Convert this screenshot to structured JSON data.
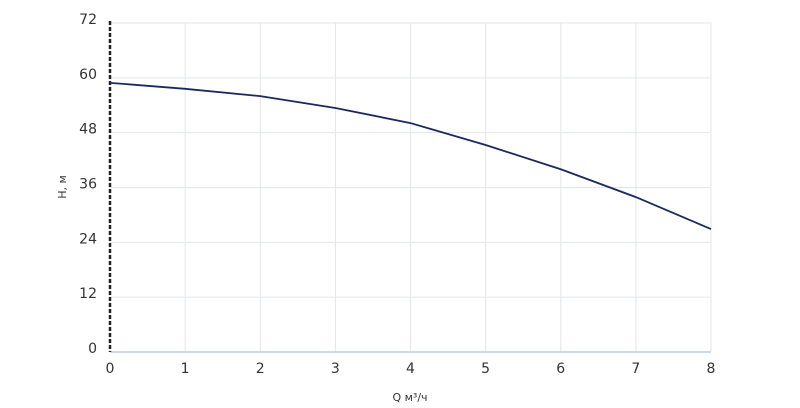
{
  "chart_data": {
    "type": "line",
    "x": [
      0,
      1,
      2,
      3,
      4,
      5,
      6,
      7,
      8
    ],
    "series": [
      {
        "name": null,
        "color": "#1b2a5e",
        "values": [
          58.9,
          57.6,
          56.0,
          53.4,
          50.1,
          45.3,
          40.0,
          33.9,
          26.9
        ]
      }
    ],
    "xlabel": "Q м³/ч",
    "ylabel": "H, м",
    "xlim": [
      0,
      8
    ],
    "xticks": [
      0,
      1,
      2,
      3,
      4,
      5,
      6,
      7,
      8
    ],
    "ylim": [
      0,
      72
    ],
    "yticks": [
      0,
      12,
      24,
      36,
      48,
      60,
      72
    ],
    "grid": true
  }
}
